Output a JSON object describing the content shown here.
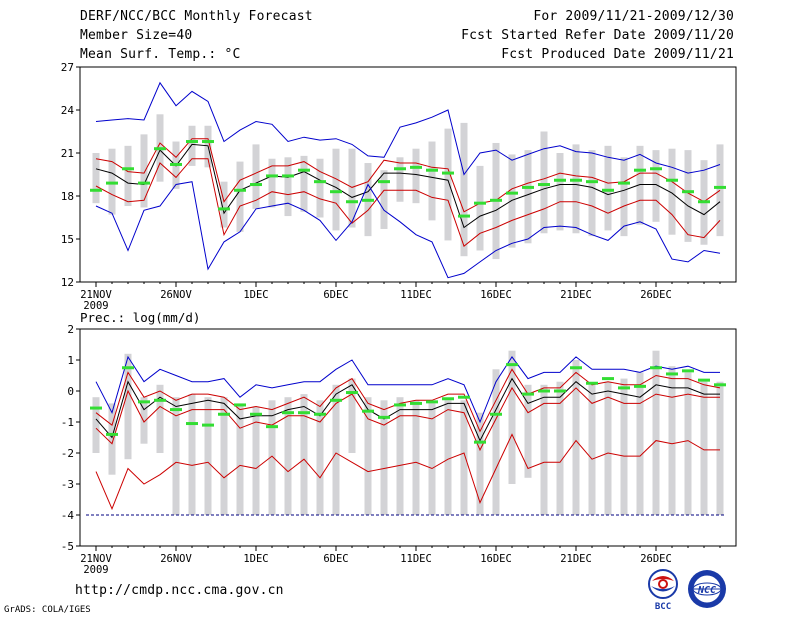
{
  "header": {
    "left": [
      "DERF/NCC/BCC Monthly Forecast",
      "Member Size=40",
      "Mean Surf. Temp.: °C"
    ],
    "right": [
      "For 2009/11/21-2009/12/30",
      "Fcst Started Refer Date 2009/11/20",
      "Fcst Produced Date 2009/11/21"
    ]
  },
  "footer": {
    "url": "http://cmdp.ncc.cma.gov.cn",
    "grads": "GrADS: COLA/IGES",
    "logo_left_text": "BCC",
    "logo_right_text": "NCC"
  },
  "colors": {
    "envelope": "#0000cc",
    "percentile": "#cc0000",
    "mean": "#000000",
    "box": "#d3d3d6",
    "observed": "#33dd33",
    "baseline": "#000080"
  },
  "chart_data": [
    {
      "type": "line",
      "name": "temperature-chart",
      "ylabel": "",
      "ylim": [
        12,
        27
      ],
      "yticks": [
        12,
        15,
        18,
        21,
        24,
        27
      ],
      "xlim": [
        0,
        41
      ],
      "xtick_positions": [
        1,
        6,
        11,
        16,
        21,
        26,
        31,
        36
      ],
      "xtick_labels": [
        "21NOV",
        "26NOV",
        "1DEC",
        "6DEC",
        "11DEC",
        "16DEC",
        "21DEC",
        "26DEC"
      ],
      "xtick_sublabel": "2009",
      "x": [
        1,
        2,
        3,
        4,
        5,
        6,
        7,
        8,
        9,
        10,
        11,
        12,
        13,
        14,
        15,
        16,
        17,
        18,
        19,
        20,
        21,
        22,
        23,
        24,
        25,
        26,
        27,
        28,
        29,
        30,
        31,
        32,
        33,
        34,
        35,
        36,
        37,
        38,
        39,
        40
      ],
      "box_low": [
        17.5,
        16.7,
        17.3,
        17.2,
        19.0,
        18.5,
        20.1,
        20.0,
        15.8,
        15.5,
        17.1,
        17.2,
        16.6,
        16.9,
        16.5,
        15.6,
        15.8,
        15.2,
        15.7,
        17.6,
        17.5,
        16.3,
        14.9,
        13.8,
        14.2,
        13.6,
        14.4,
        14.7,
        15.4,
        15.6,
        15.4,
        15.2,
        15.6,
        15.2,
        16.0,
        16.2,
        15.3,
        14.8,
        14.6,
        15.2
      ],
      "box_high": [
        21.0,
        21.3,
        21.5,
        22.3,
        23.7,
        21.8,
        22.9,
        22.9,
        19.0,
        20.4,
        21.6,
        20.6,
        20.7,
        20.8,
        20.6,
        21.3,
        21.3,
        20.3,
        19.8,
        20.7,
        21.3,
        21.8,
        22.7,
        23.1,
        20.1,
        21.7,
        20.9,
        21.2,
        22.5,
        21.0,
        21.6,
        21.2,
        21.5,
        20.7,
        21.5,
        21.2,
        21.3,
        21.2,
        20.5,
        21.6
      ],
      "observed": [
        18.4,
        18.9,
        19.9,
        18.9,
        21.3,
        20.2,
        21.8,
        21.8,
        17.1,
        18.4,
        18.8,
        19.4,
        19.4,
        19.8,
        19.0,
        18.3,
        17.6,
        17.7,
        19.0,
        19.9,
        20.0,
        19.8,
        19.6,
        16.6,
        17.5,
        17.7,
        18.2,
        18.6,
        18.8,
        19.1,
        19.1,
        19.0,
        18.4,
        18.9,
        19.8,
        19.9,
        19.1,
        18.3,
        17.6,
        18.6
      ],
      "series": [
        {
          "name": "max",
          "color_key": "envelope",
          "values": [
            23.2,
            23.3,
            23.4,
            23.3,
            25.9,
            24.3,
            25.3,
            24.6,
            21.8,
            22.6,
            23.2,
            23.0,
            21.8,
            22.1,
            21.9,
            22.0,
            21.6,
            20.8,
            20.7,
            22.8,
            23.1,
            23.5,
            24.0,
            19.5,
            21.0,
            21.2,
            20.5,
            20.9,
            21.3,
            21.5,
            21.1,
            21.0,
            20.7,
            20.5,
            20.9,
            20.3,
            20.0,
            19.6,
            19.8,
            20.2
          ]
        },
        {
          "name": "p90",
          "color_key": "percentile",
          "values": [
            20.6,
            20.4,
            19.7,
            19.6,
            21.7,
            20.7,
            22.0,
            22.0,
            17.6,
            19.1,
            19.6,
            20.1,
            20.1,
            20.4,
            19.7,
            19.2,
            18.6,
            19.0,
            20.5,
            20.3,
            20.3,
            20.0,
            19.9,
            16.9,
            17.5,
            17.7,
            18.5,
            18.9,
            19.2,
            19.6,
            19.4,
            19.3,
            18.9,
            19.0,
            19.6,
            19.6,
            19.0,
            18.2,
            17.6,
            18.4
          ]
        },
        {
          "name": "mean",
          "color_key": "mean",
          "values": [
            19.9,
            19.6,
            18.9,
            18.8,
            21.2,
            20.1,
            21.6,
            21.5,
            16.8,
            18.4,
            18.9,
            19.4,
            19.3,
            19.7,
            19.1,
            18.6,
            17.9,
            18.3,
            19.6,
            19.6,
            19.5,
            19.3,
            19.1,
            15.8,
            16.6,
            17.0,
            17.7,
            18.1,
            18.5,
            18.8,
            18.8,
            18.6,
            18.1,
            18.4,
            18.8,
            18.8,
            18.2,
            17.3,
            16.7,
            17.6
          ]
        },
        {
          "name": "p10",
          "color_key": "percentile",
          "values": [
            18.7,
            18.1,
            17.6,
            17.7,
            20.3,
            19.3,
            20.6,
            20.6,
            15.3,
            17.3,
            17.7,
            18.3,
            18.1,
            18.3,
            17.8,
            17.5,
            16.1,
            17.0,
            18.4,
            18.4,
            18.4,
            17.9,
            17.7,
            14.5,
            15.4,
            15.8,
            16.3,
            16.7,
            17.1,
            17.6,
            17.6,
            17.3,
            16.8,
            17.3,
            17.7,
            17.7,
            16.7,
            15.3,
            15.1,
            16.3
          ]
        },
        {
          "name": "min",
          "color_key": "envelope",
          "values": [
            17.3,
            16.8,
            14.2,
            17.0,
            17.3,
            18.8,
            19.0,
            12.9,
            14.8,
            15.5,
            17.1,
            17.3,
            17.5,
            17.0,
            16.3,
            14.9,
            16.2,
            18.8,
            17.0,
            16.2,
            15.3,
            14.8,
            12.3,
            12.6,
            13.4,
            14.2,
            14.7,
            15.0,
            15.8,
            15.9,
            15.8,
            15.3,
            14.9,
            15.9,
            16.2,
            15.7,
            13.6,
            13.4,
            14.2,
            14.0
          ]
        }
      ]
    },
    {
      "type": "line",
      "name": "precipitation-chart",
      "ylabel": "Prec.: log(mm/d)",
      "ylim": [
        -5,
        2
      ],
      "yticks": [
        -5,
        -4,
        -3,
        -2,
        -1,
        0,
        1,
        2
      ],
      "xlim": [
        0,
        41
      ],
      "xtick_positions": [
        1,
        6,
        11,
        16,
        21,
        26,
        31,
        36
      ],
      "xtick_labels": [
        "21NOV",
        "26NOV",
        "1DEC",
        "6DEC",
        "11DEC",
        "16DEC",
        "21DEC",
        "26DEC"
      ],
      "xtick_sublabel": "2009",
      "baseline": -4,
      "x": [
        1,
        2,
        3,
        4,
        5,
        6,
        7,
        8,
        9,
        10,
        11,
        12,
        13,
        14,
        15,
        16,
        17,
        18,
        19,
        20,
        21,
        22,
        23,
        24,
        25,
        26,
        27,
        28,
        29,
        30,
        31,
        32,
        33,
        34,
        35,
        36,
        37,
        38,
        39,
        40
      ],
      "box_low": [
        -2.0,
        -2.7,
        -2.2,
        -1.7,
        -2.0,
        -4.0,
        -4.0,
        -4.0,
        -4.0,
        -4.0,
        -4.0,
        -4.0,
        -4.0,
        -4.0,
        -4.0,
        -4.0,
        -2.0,
        -4.0,
        -4.0,
        -4.0,
        -4.0,
        -4.0,
        -4.0,
        -4.0,
        -4.0,
        -4.0,
        -3.0,
        -2.8,
        -4.0,
        -4.0,
        -4.0,
        -4.0,
        -4.0,
        -4.0,
        -4.0,
        -4.0,
        -4.0,
        -4.0,
        -4.0,
        -4.0
      ],
      "box_high": [
        -0.2,
        -0.4,
        1.2,
        -0.2,
        0.2,
        -0.2,
        -0.1,
        -0.2,
        -0.2,
        -0.4,
        -0.5,
        -0.3,
        -0.2,
        -0.1,
        -0.3,
        0.2,
        0.4,
        -0.2,
        -0.3,
        -0.2,
        -0.3,
        -0.3,
        -0.3,
        -0.3,
        -0.7,
        0.7,
        1.3,
        0.2,
        0.2,
        0.3,
        1.0,
        0.2,
        0.3,
        0.4,
        0.6,
        1.3,
        0.8,
        0.6,
        0.3,
        0.3
      ],
      "observed": [
        -0.55,
        -1.4,
        0.75,
        -0.35,
        -0.3,
        -0.6,
        -1.05,
        -1.1,
        -0.75,
        -0.45,
        -0.75,
        -1.15,
        -0.7,
        -0.7,
        -0.75,
        -0.3,
        -0.05,
        -0.65,
        -0.85,
        -0.45,
        -0.4,
        -0.35,
        -0.25,
        -0.2,
        -1.65,
        -0.75,
        0.85,
        -0.1,
        0.0,
        0.0,
        0.75,
        0.25,
        0.4,
        0.1,
        0.15,
        0.75,
        0.55,
        0.65,
        0.35,
        0.2
      ],
      "series": [
        {
          "name": "max",
          "color_key": "envelope",
          "values": [
            0.3,
            -0.7,
            1.1,
            0.3,
            0.7,
            0.5,
            0.3,
            0.3,
            0.4,
            -0.2,
            0.2,
            0.1,
            0.2,
            0.3,
            0.3,
            0.7,
            1.0,
            0.2,
            0.2,
            0.2,
            0.2,
            0.2,
            0.4,
            0.2,
            -1.0,
            0.3,
            1.1,
            0.4,
            0.6,
            0.6,
            1.1,
            0.7,
            0.7,
            0.7,
            0.6,
            0.8,
            0.7,
            0.8,
            0.6,
            0.6
          ]
        },
        {
          "name": "p90",
          "color_key": "percentile",
          "values": [
            -0.7,
            -1.1,
            0.6,
            -0.2,
            0.0,
            -0.3,
            -0.1,
            -0.1,
            -0.2,
            -0.6,
            -0.5,
            -0.6,
            -0.4,
            -0.2,
            -0.5,
            0.1,
            0.4,
            -0.4,
            -0.6,
            -0.4,
            -0.3,
            -0.3,
            -0.1,
            -0.1,
            -1.3,
            -0.3,
            0.7,
            -0.1,
            0.1,
            0.1,
            0.6,
            0.2,
            0.3,
            0.2,
            0.2,
            0.5,
            0.4,
            0.4,
            0.2,
            0.1
          ]
        },
        {
          "name": "mean",
          "color_key": "mean",
          "values": [
            -0.9,
            -1.5,
            0.3,
            -0.6,
            -0.2,
            -0.5,
            -0.4,
            -0.3,
            -0.4,
            -0.9,
            -0.8,
            -0.8,
            -0.6,
            -0.5,
            -0.8,
            -0.1,
            0.2,
            -0.6,
            -0.9,
            -0.6,
            -0.6,
            -0.6,
            -0.4,
            -0.4,
            -1.6,
            -0.6,
            0.4,
            -0.4,
            -0.2,
            -0.2,
            0.3,
            -0.1,
            0.0,
            -0.1,
            -0.2,
            0.2,
            0.1,
            0.1,
            -0.1,
            -0.1
          ]
        },
        {
          "name": "p10",
          "color_key": "percentile",
          "values": [
            -1.2,
            -1.7,
            0.0,
            -1.0,
            -0.5,
            -0.8,
            -0.6,
            -0.6,
            -0.6,
            -1.2,
            -1.0,
            -1.1,
            -0.8,
            -0.8,
            -1.0,
            -0.4,
            -0.1,
            -0.9,
            -1.1,
            -0.8,
            -0.8,
            -0.9,
            -0.6,
            -0.7,
            -1.9,
            -0.9,
            0.1,
            -0.7,
            -0.4,
            -0.4,
            0.1,
            -0.4,
            -0.2,
            -0.4,
            -0.4,
            -0.1,
            -0.2,
            -0.1,
            -0.2,
            -0.2
          ]
        },
        {
          "name": "min",
          "color_key": "percentile",
          "values": [
            -2.6,
            -3.8,
            -2.5,
            -3.0,
            -2.7,
            -2.3,
            -2.4,
            -2.3,
            -2.8,
            -2.4,
            -2.5,
            -2.1,
            -2.6,
            -2.2,
            -2.8,
            -2.0,
            -2.3,
            -2.6,
            -2.5,
            -2.4,
            -2.3,
            -2.5,
            -2.2,
            -2.0,
            -3.6,
            -2.5,
            -1.4,
            -2.5,
            -2.3,
            -2.3,
            -1.6,
            -2.2,
            -2.0,
            -2.1,
            -2.1,
            -1.6,
            -1.7,
            -1.6,
            -1.9,
            -1.9
          ]
        }
      ]
    }
  ]
}
